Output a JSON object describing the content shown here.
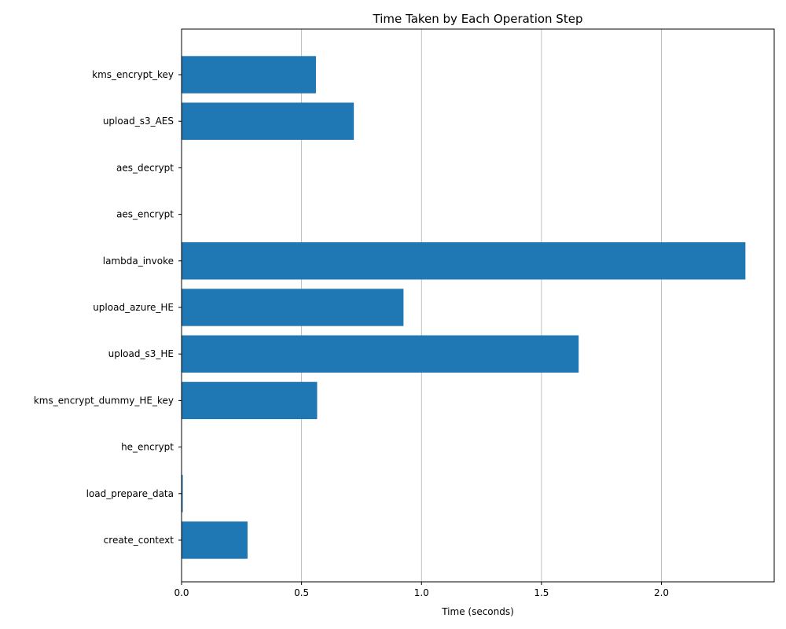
{
  "chart_data": {
    "type": "bar",
    "orientation": "horizontal",
    "title": "Time Taken by Each Operation Step",
    "xlabel": "Time (seconds)",
    "ylabel": "",
    "xlim": [
      0,
      2.47
    ],
    "xticks": [
      0.0,
      0.5,
      1.0,
      1.5,
      2.0
    ],
    "xtick_labels": [
      "0.0",
      "0.5",
      "1.0",
      "1.5",
      "2.0"
    ],
    "grid": "vertical",
    "bar_color": "#1f77b4",
    "categories": [
      "create_context",
      "load_prepare_data",
      "he_encrypt",
      "kms_encrypt_dummy_HE_key",
      "upload_s3_HE",
      "upload_azure_HE",
      "lambda_invoke",
      "aes_encrypt",
      "aes_decrypt",
      "upload_s3_AES",
      "kms_encrypt_key"
    ],
    "values": [
      0.275,
      0.005,
      0.001,
      0.565,
      1.655,
      0.925,
      2.35,
      0.001,
      0.001,
      0.718,
      0.56
    ]
  }
}
